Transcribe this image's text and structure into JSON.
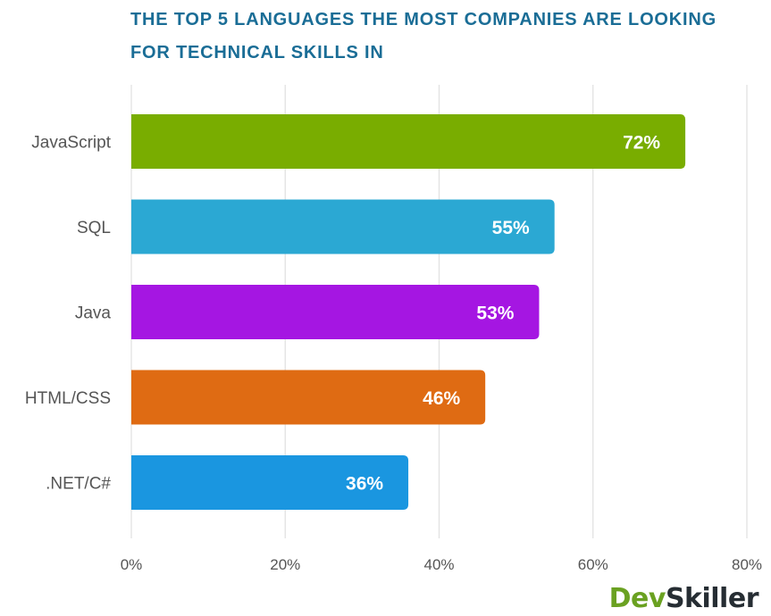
{
  "chart_data": {
    "type": "bar",
    "orientation": "horizontal",
    "title": "THE TOP 5 LANGUAGES THE MOST COMPANIES ARE LOOKING FOR TECHNICAL SKILLS IN",
    "categories": [
      "JavaScript",
      "SQL",
      "Java",
      "HTML/CSS",
      ".NET/C#"
    ],
    "values": [
      72,
      55,
      53,
      46,
      36
    ],
    "value_labels": [
      "72%",
      "55%",
      "53%",
      "46%",
      "36%"
    ],
    "colors": [
      "#79ad00",
      "#2ba8d3",
      "#a516e2",
      "#df6b13",
      "#1a96e0"
    ],
    "xlim": [
      0,
      80
    ],
    "xticks": [
      0,
      20,
      40,
      60,
      80
    ],
    "xtick_labels": [
      "0%",
      "20%",
      "40%",
      "60%",
      "80%"
    ],
    "xlabel": "",
    "ylabel": "",
    "grid": true,
    "gridline_color": "#e2e2e2"
  },
  "branding": {
    "logo_part1": "Dev",
    "logo_part2": "Skiller"
  }
}
